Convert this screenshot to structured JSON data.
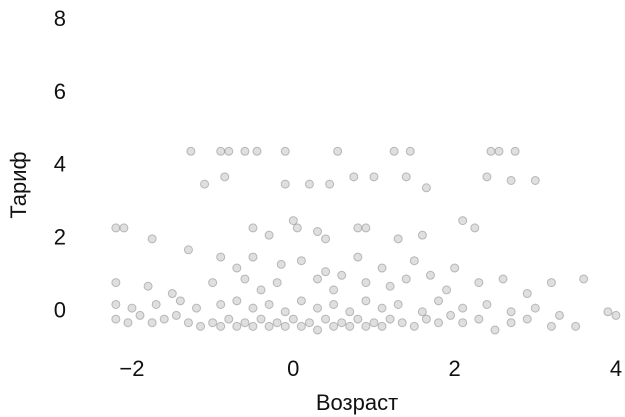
{
  "chart_data": {
    "type": "scatter",
    "x_label": "Возраст",
    "y_label": "Тариф",
    "color": "#808080",
    "xlim": [
      -2.4,
      4.05
    ],
    "ylim": [
      -0.9,
      8
    ],
    "xticks": [
      {
        "value": -2,
        "label": "−2"
      },
      0,
      2,
      4
    ],
    "yticks": [
      0,
      2,
      4,
      6,
      8
    ],
    "x": [
      -1.27,
      -0.9,
      -0.8,
      -0.6,
      -0.45,
      -0.1,
      0.55,
      1.25,
      1.45,
      2.45,
      2.55,
      2.75,
      -1.1,
      -0.85,
      -0.1,
      0.2,
      0.45,
      0.75,
      1.0,
      1.4,
      1.65,
      2.4,
      2.7,
      3.0,
      -2.2,
      -2.1,
      -1.75,
      -0.5,
      -0.3,
      0.0,
      0.05,
      0.3,
      0.4,
      0.8,
      0.9,
      1.3,
      1.6,
      2.1,
      2.25,
      -1.3,
      -0.9,
      -0.7,
      -0.5,
      -0.15,
      0.1,
      0.4,
      0.6,
      0.8,
      1.1,
      1.5,
      1.7,
      2.0,
      -2.2,
      -1.8,
      -1.5,
      -1.0,
      -0.6,
      -0.4,
      -0.2,
      0.3,
      0.5,
      0.9,
      1.2,
      1.4,
      1.9,
      2.3,
      2.6,
      2.9,
      3.2,
      3.6,
      -2.2,
      -2.0,
      -1.7,
      -1.4,
      -1.2,
      -0.9,
      -0.7,
      -0.5,
      -0.3,
      -0.1,
      0.1,
      0.3,
      0.5,
      0.7,
      0.9,
      1.1,
      1.3,
      1.6,
      1.8,
      2.1,
      2.4,
      2.7,
      3.0,
      3.3,
      3.9,
      -2.2,
      -2.05,
      -1.9,
      -1.75,
      -1.6,
      -1.45,
      -1.3,
      -1.15,
      -1.0,
      -0.9,
      -0.8,
      -0.7,
      -0.6,
      -0.5,
      -0.4,
      -0.3,
      -0.2,
      -0.1,
      0.0,
      0.1,
      0.2,
      0.3,
      0.4,
      0.5,
      0.6,
      0.7,
      0.8,
      0.9,
      1.0,
      1.1,
      1.2,
      1.35,
      1.5,
      1.65,
      1.8,
      1.95,
      2.1,
      2.3,
      2.5,
      2.7,
      2.9,
      3.2,
      3.5,
      4.0
    ],
    "values": [
      4.4,
      4.4,
      4.4,
      4.4,
      4.4,
      4.4,
      4.4,
      4.4,
      4.4,
      4.4,
      4.4,
      4.4,
      3.5,
      3.7,
      3.5,
      3.5,
      3.5,
      3.7,
      3.7,
      3.7,
      3.4,
      3.7,
      3.6,
      3.6,
      2.3,
      2.3,
      2.0,
      2.3,
      2.1,
      2.5,
      2.3,
      2.2,
      2.0,
      2.3,
      2.3,
      2.0,
      2.1,
      2.5,
      2.3,
      1.7,
      1.5,
      1.2,
      1.5,
      1.3,
      1.4,
      1.1,
      1.0,
      1.5,
      1.2,
      1.4,
      1.0,
      1.2,
      0.8,
      0.7,
      0.5,
      0.8,
      0.9,
      0.6,
      0.8,
      0.9,
      0.6,
      0.8,
      0.7,
      0.9,
      0.6,
      0.8,
      0.9,
      0.5,
      0.8,
      0.9,
      0.2,
      0.1,
      0.2,
      0.3,
      0.1,
      0.2,
      0.3,
      0.1,
      0.2,
      0.0,
      0.3,
      0.1,
      0.2,
      0.0,
      0.3,
      0.1,
      0.2,
      0.0,
      0.3,
      0.1,
      0.2,
      0.0,
      0.1,
      -0.1,
      0.0,
      -0.2,
      -0.3,
      -0.1,
      -0.3,
      -0.2,
      -0.1,
      -0.3,
      -0.4,
      -0.3,
      -0.4,
      -0.2,
      -0.4,
      -0.3,
      -0.4,
      -0.2,
      -0.4,
      -0.3,
      -0.4,
      -0.2,
      -0.4,
      -0.3,
      -0.5,
      -0.2,
      -0.4,
      -0.3,
      -0.4,
      -0.2,
      -0.4,
      -0.3,
      -0.4,
      -0.2,
      -0.3,
      -0.4,
      -0.2,
      -0.3,
      -0.1,
      -0.3,
      -0.2,
      -0.5,
      -0.3,
      -0.2,
      -0.4,
      -0.4,
      -0.1
    ]
  }
}
